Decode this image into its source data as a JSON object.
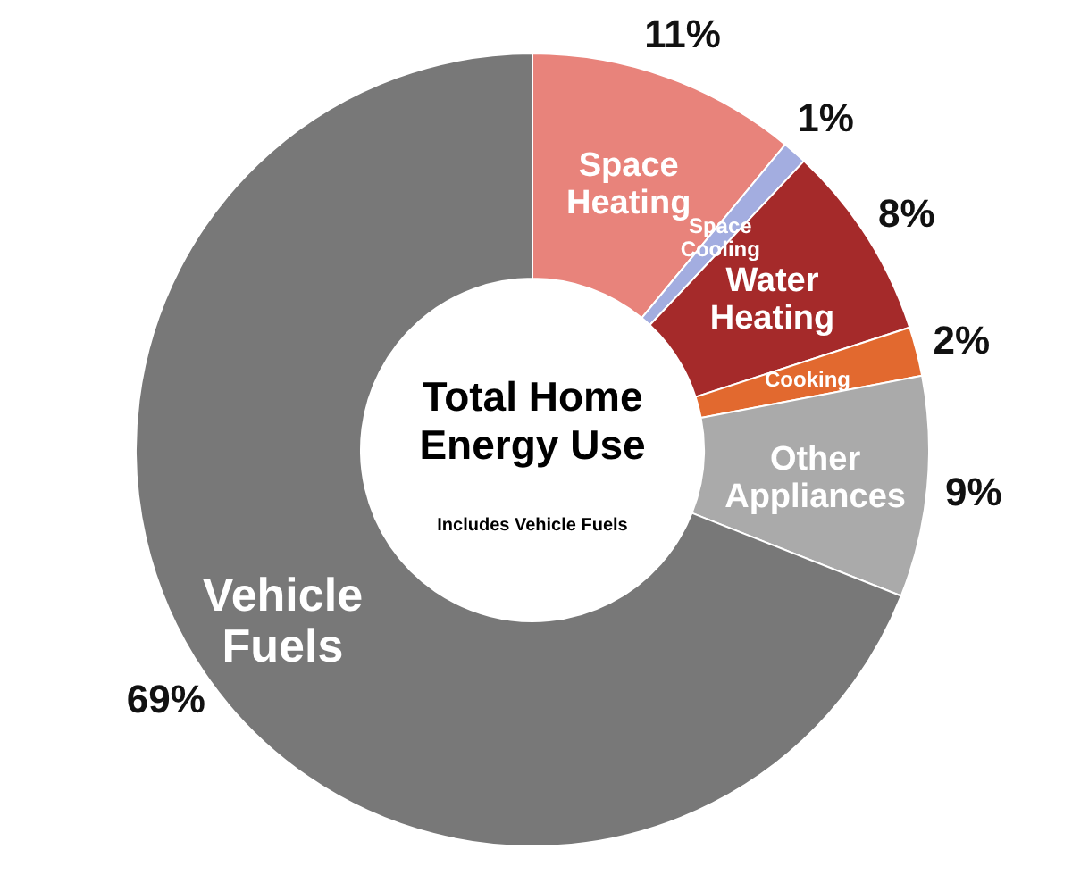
{
  "chart_data": {
    "type": "donut",
    "title": "Total Home Energy Use",
    "subtitle": "Includes Vehicle Fuels",
    "categories": [
      "Space Heating",
      "Space Cooling",
      "Water Heating",
      "Cooking",
      "Other Appliances",
      "Vehicle Fuels"
    ],
    "values": [
      11,
      1,
      8,
      2,
      9,
      69
    ],
    "colors": [
      "#e8837b",
      "#a3ade0",
      "#a52a2a",
      "#e2692f",
      "#aaaaaa",
      "#787878"
    ],
    "value_labels": [
      "11%",
      "1%",
      "8%",
      "2%",
      "9%",
      "69%"
    ]
  }
}
